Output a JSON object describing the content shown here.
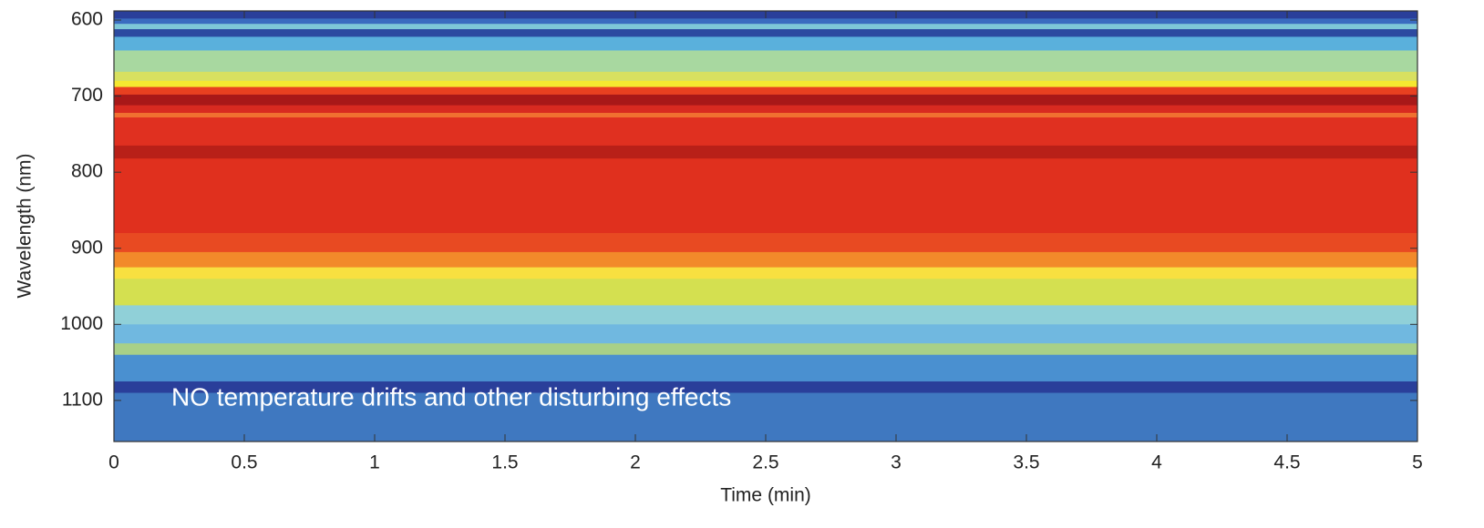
{
  "chart_data": {
    "type": "heatmap",
    "annotation": "NO temperature drifts and other disturbing effects",
    "xlabel": "Time (min)",
    "ylabel": "Wavelength (nm)",
    "xlim": [
      0,
      5
    ],
    "xticks": [
      0,
      0.5,
      1,
      1.5,
      2,
      2.5,
      3,
      3.5,
      4,
      4.5,
      5
    ],
    "ylim": [
      588,
      1154
    ],
    "invert_y": true,
    "yticks": [
      600,
      700,
      800,
      900,
      1000,
      1100
    ],
    "bands": [
      588,
      598,
      605,
      612,
      622,
      640,
      668,
      680,
      688,
      698,
      712,
      722,
      728,
      765,
      782,
      880,
      905,
      925,
      940,
      975,
      1000,
      1025,
      1040,
      1075,
      1090,
      1154
    ],
    "colors": [
      "#2a3f9a",
      "#3a6cc0",
      "#7ec8d8",
      "#2c4aa0",
      "#5ab0dc",
      "#a8d8a0",
      "#d8e060",
      "#f5e830",
      "#e84020",
      "#a81818",
      "#d82a20",
      "#f07030",
      "#e03020",
      "#b82018",
      "#e0301e",
      "#e84a22",
      "#f28a2a",
      "#f8e040",
      "#d4e050",
      "#90d0d8",
      "#70b8e0",
      "#a8d088",
      "#4a90d0",
      "#2a3f9a",
      "#3f78c0"
    ]
  }
}
